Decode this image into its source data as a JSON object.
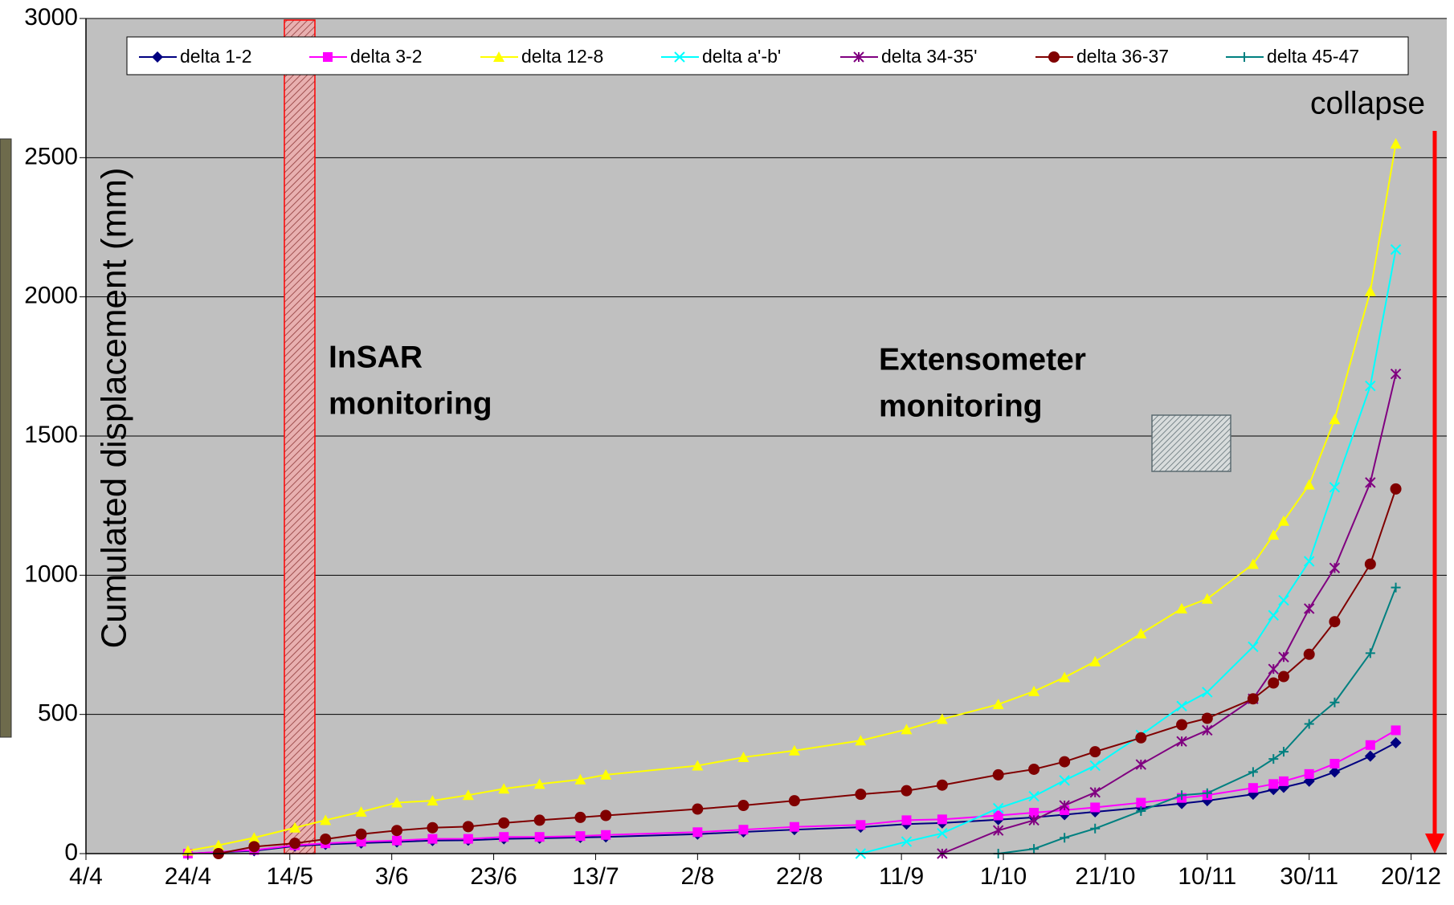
{
  "chart_data": {
    "type": "line",
    "y_label": "Cumulated displacement (mm)",
    "xlim": [
      94,
      361
    ],
    "xticks": [
      {
        "value": 94,
        "label": "4/4"
      },
      {
        "value": 114,
        "label": "24/4"
      },
      {
        "value": 134,
        "label": "14/5"
      },
      {
        "value": 154,
        "label": "3/6"
      },
      {
        "value": 174,
        "label": "23/6"
      },
      {
        "value": 194,
        "label": "13/7"
      },
      {
        "value": 214,
        "label": "2/8"
      },
      {
        "value": 234,
        "label": "22/8"
      },
      {
        "value": 254,
        "label": "11/9"
      },
      {
        "value": 274,
        "label": "1/10"
      },
      {
        "value": 294,
        "label": "21/10"
      },
      {
        "value": 314,
        "label": "10/11"
      },
      {
        "value": 334,
        "label": "30/11"
      },
      {
        "value": 354,
        "label": "20/12"
      }
    ],
    "ylim": [
      0,
      3000
    ],
    "yticks": [
      0,
      500,
      1000,
      1500,
      2000,
      2500,
      3000
    ],
    "grid": true,
    "plot_background": "#c0c0c0",
    "series": [
      {
        "name": "delta 1-2",
        "color": "#000080",
        "marker": "diamond",
        "x": [
          114,
          127,
          135,
          141,
          148,
          155,
          162,
          169,
          176,
          183,
          191,
          196,
          214,
          223,
          233,
          246,
          255,
          262,
          273,
          280,
          286,
          292,
          301,
          309,
          314,
          323,
          327,
          329,
          334,
          339,
          346,
          351
        ],
        "values": [
          0,
          10,
          27,
          33,
          38,
          42,
          47,
          48,
          53,
          55,
          58,
          60,
          70,
          78,
          86,
          95,
          106,
          110,
          122,
          130,
          140,
          150,
          165,
          180,
          190,
          213,
          230,
          238,
          260,
          293,
          350,
          398
        ]
      },
      {
        "name": "delta 3-2",
        "color": "#ff00ff",
        "marker": "square",
        "x": [
          114,
          127,
          135,
          141,
          148,
          155,
          162,
          169,
          176,
          183,
          191,
          196,
          214,
          223,
          233,
          246,
          255,
          262,
          273,
          280,
          286,
          292,
          301,
          309,
          314,
          323,
          327,
          329,
          334,
          339,
          346,
          351
        ],
        "values": [
          0,
          13,
          30,
          37,
          43,
          47,
          53,
          53,
          60,
          60,
          63,
          67,
          77,
          86,
          96,
          103,
          120,
          123,
          137,
          147,
          156,
          166,
          183,
          200,
          210,
          236,
          250,
          260,
          286,
          323,
          390,
          443
        ]
      },
      {
        "name": "delta 12-8",
        "color": "#ffff00",
        "marker": "triangle",
        "x": [
          114,
          120,
          127,
          135,
          141,
          148,
          155,
          162,
          169,
          176,
          183,
          191,
          196,
          214,
          223,
          233,
          246,
          255,
          262,
          273,
          280,
          286,
          292,
          301,
          309,
          314,
          323,
          327,
          329,
          334,
          339,
          346,
          351
        ],
        "values": [
          10,
          30,
          57,
          93,
          120,
          150,
          183,
          190,
          210,
          233,
          250,
          266,
          283,
          316,
          346,
          370,
          406,
          446,
          483,
          536,
          583,
          633,
          690,
          790,
          880,
          915,
          1040,
          1145,
          1195,
          1325,
          1560,
          2020,
          2550
        ]
      },
      {
        "name": "delta a'-b'",
        "color": "#00ffff",
        "marker": "x",
        "x": [
          246,
          255,
          262,
          273,
          280,
          286,
          292,
          301,
          309,
          314,
          323,
          327,
          329,
          334,
          339,
          346,
          351
        ],
        "values": [
          0,
          43,
          73,
          163,
          206,
          263,
          316,
          426,
          530,
          580,
          743,
          856,
          910,
          1050,
          1316,
          1680,
          2170
        ]
      },
      {
        "name": "delta 34-35'",
        "color": "#800080",
        "marker": "asterisk",
        "x": [
          262,
          273,
          280,
          286,
          292,
          301,
          309,
          314,
          323,
          327,
          329,
          334,
          339,
          346,
          351
        ],
        "values": [
          0,
          83,
          120,
          173,
          220,
          320,
          403,
          443,
          556,
          663,
          706,
          880,
          1026,
          1333,
          1723
        ]
      },
      {
        "name": "delta 36-37",
        "color": "#800000",
        "marker": "circle",
        "x": [
          120,
          127,
          135,
          141,
          148,
          155,
          162,
          169,
          176,
          183,
          191,
          196,
          214,
          223,
          233,
          246,
          255,
          262,
          273,
          280,
          286,
          292,
          301,
          309,
          314,
          323,
          327,
          329,
          334,
          339,
          346,
          351
        ],
        "values": [
          0,
          25,
          37,
          52,
          70,
          83,
          93,
          97,
          110,
          120,
          130,
          137,
          160,
          173,
          190,
          213,
          226,
          246,
          283,
          303,
          330,
          366,
          416,
          463,
          486,
          556,
          613,
          636,
          716,
          833,
          1040,
          1310
        ]
      },
      {
        "name": "delta 45-47",
        "color": "#008080",
        "marker": "plus",
        "x": [
          273,
          280,
          286,
          292,
          301,
          309,
          314,
          323,
          327,
          329,
          334,
          339,
          346,
          351
        ],
        "values": [
          0,
          17,
          57,
          90,
          153,
          210,
          217,
          293,
          340,
          366,
          466,
          543,
          720,
          956
        ]
      }
    ],
    "annotations": [
      {
        "lines": [
          "InSAR",
          "monitoring"
        ],
        "color": "#ff0000"
      },
      {
        "lines": [
          "Extensometer",
          "monitoring"
        ],
        "color": "#4a7a85"
      },
      {
        "lines": [
          "collapse"
        ],
        "color": "#ff0000"
      }
    ]
  }
}
